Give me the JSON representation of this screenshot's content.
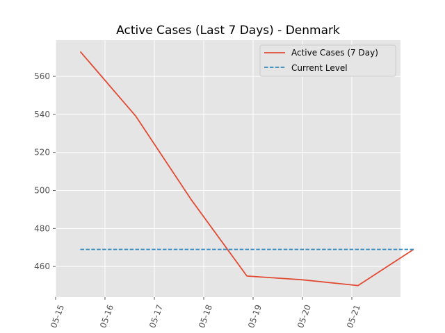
{
  "chart_data": {
    "type": "line",
    "title": "Active Cases (Last 7 Days) - Denmark",
    "xlabel": "",
    "ylabel": "",
    "x_tick_labels": [
      "05-15",
      "05-16",
      "05-17",
      "05-18",
      "05-19",
      "05-20",
      "05-21"
    ],
    "ylim": [
      444,
      579
    ],
    "y_ticks": [
      460,
      480,
      500,
      520,
      540,
      560
    ],
    "grid": true,
    "legend_position": "top-right",
    "series": [
      {
        "name": "Active Cases (7 Day)",
        "x": [
          "2020-05-15 12:00",
          "2020-05-16 15:00",
          "2020-05-17 18:00",
          "2020-05-18 21:00",
          "2020-05-20 00:00",
          "2020-05-21 03:00",
          "2020-05-22 06:00"
        ],
        "values": [
          573,
          539,
          495,
          455,
          453,
          450,
          469
        ],
        "color": "#E24A33",
        "style": "solid"
      },
      {
        "name": "Current Level",
        "x": [
          "2020-05-15 12:00",
          "2020-05-22 06:00"
        ],
        "values": [
          469,
          469
        ],
        "color": "#348ABD",
        "style": "dashed"
      }
    ]
  }
}
